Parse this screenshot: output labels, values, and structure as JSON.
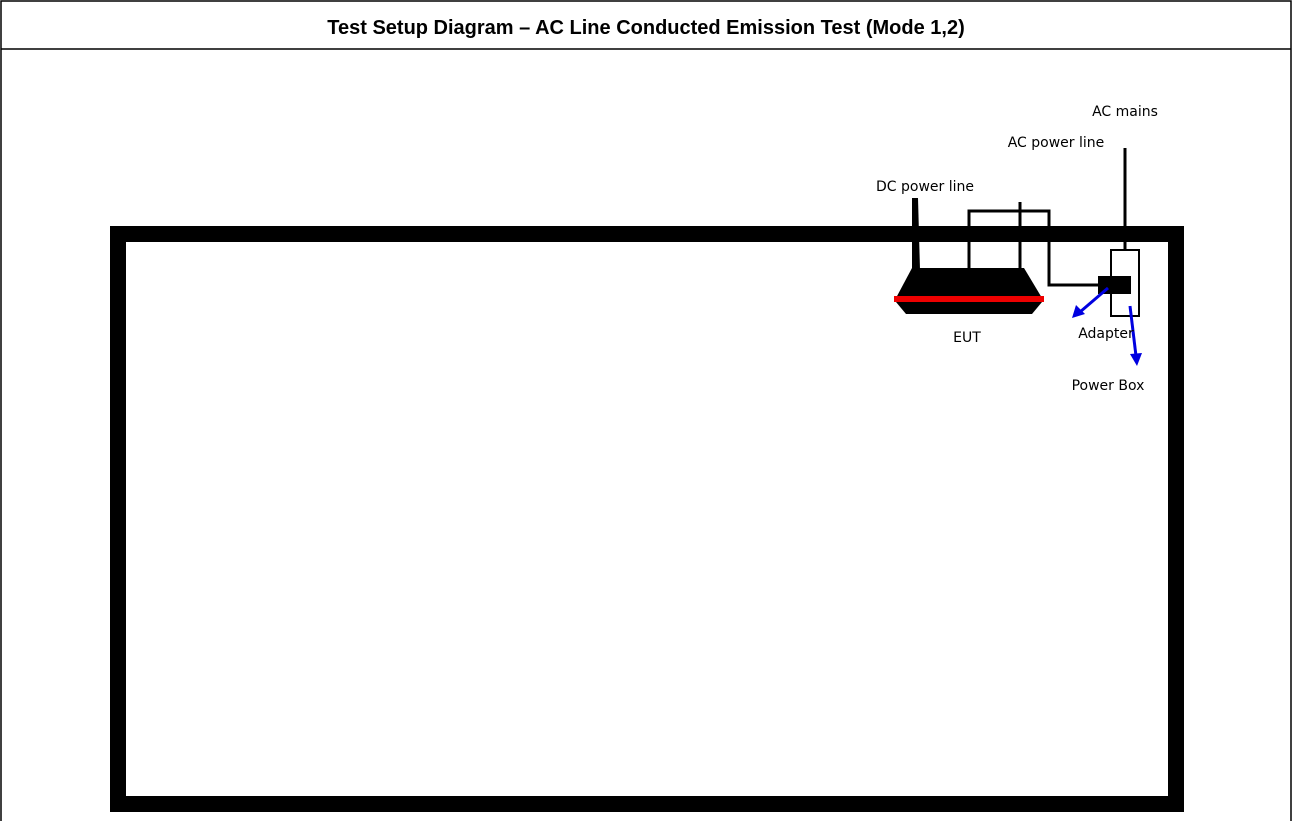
{
  "header": {
    "title": "Test Setup Diagram – AC Line Conducted Emission Test (Mode 1,2)"
  },
  "labels": {
    "ac_mains": "AC mains",
    "ac_power_line": "AC power line",
    "dc_power_line": "DC power line",
    "eut": "EUT",
    "adapter": "Adapter",
    "power_box": "Power Box"
  }
}
